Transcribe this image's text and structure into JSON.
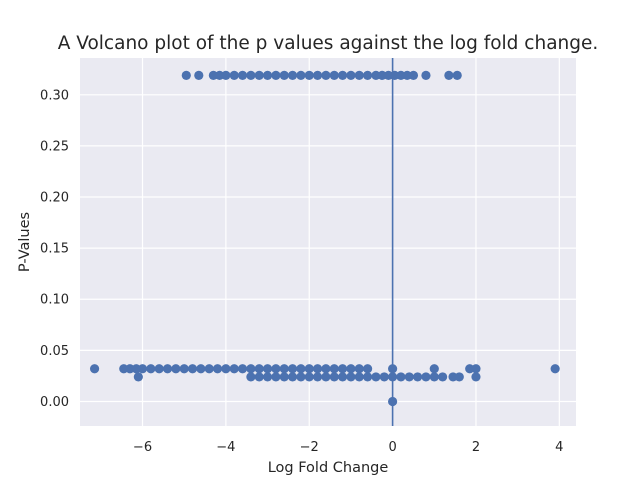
{
  "chart_data": {
    "type": "scatter",
    "title": "A Volcano plot of the p values against the log fold change.",
    "xlabel": "Log Fold Change",
    "ylabel": "P-Values",
    "xlim": [
      -7.5,
      4.4
    ],
    "ylim": [
      -0.024,
      0.336
    ],
    "x_ticks": [
      -6,
      -4,
      -2,
      0,
      2,
      4
    ],
    "x_tick_labels": [
      "−6",
      "−4",
      "−2",
      "0",
      "2",
      "4"
    ],
    "y_ticks": [
      0.0,
      0.05,
      0.1,
      0.15,
      0.2,
      0.25,
      0.3
    ],
    "y_tick_labels": [
      "0.00",
      "0.05",
      "0.10",
      "0.15",
      "0.20",
      "0.25",
      "0.30"
    ],
    "grid": true,
    "reference_line": {
      "orientation": "vertical",
      "x": 0
    },
    "points": [
      {
        "x": -4.95,
        "y": 0.319
      },
      {
        "x": -4.65,
        "y": 0.319
      },
      {
        "x": -4.3,
        "y": 0.319
      },
      {
        "x": -4.15,
        "y": 0.319
      },
      {
        "x": -4.0,
        "y": 0.319
      },
      {
        "x": -3.8,
        "y": 0.319
      },
      {
        "x": -3.6,
        "y": 0.319
      },
      {
        "x": -3.4,
        "y": 0.319
      },
      {
        "x": -3.2,
        "y": 0.319
      },
      {
        "x": -3.0,
        "y": 0.319
      },
      {
        "x": -2.8,
        "y": 0.319
      },
      {
        "x": -2.6,
        "y": 0.319
      },
      {
        "x": -2.4,
        "y": 0.319
      },
      {
        "x": -2.2,
        "y": 0.319
      },
      {
        "x": -2.0,
        "y": 0.319
      },
      {
        "x": -1.8,
        "y": 0.319
      },
      {
        "x": -1.6,
        "y": 0.319
      },
      {
        "x": -1.4,
        "y": 0.319
      },
      {
        "x": -1.2,
        "y": 0.319
      },
      {
        "x": -1.0,
        "y": 0.319
      },
      {
        "x": -0.8,
        "y": 0.319
      },
      {
        "x": -0.6,
        "y": 0.319
      },
      {
        "x": -0.4,
        "y": 0.319
      },
      {
        "x": -0.25,
        "y": 0.319
      },
      {
        "x": -0.1,
        "y": 0.319
      },
      {
        "x": 0.05,
        "y": 0.319
      },
      {
        "x": 0.2,
        "y": 0.319
      },
      {
        "x": 0.35,
        "y": 0.319
      },
      {
        "x": 0.5,
        "y": 0.319
      },
      {
        "x": 0.8,
        "y": 0.319
      },
      {
        "x": 1.35,
        "y": 0.319
      },
      {
        "x": 1.55,
        "y": 0.319
      },
      {
        "x": -7.15,
        "y": 0.032
      },
      {
        "x": -6.45,
        "y": 0.032
      },
      {
        "x": -6.3,
        "y": 0.032
      },
      {
        "x": -6.15,
        "y": 0.032
      },
      {
        "x": -6.0,
        "y": 0.032
      },
      {
        "x": -5.8,
        "y": 0.032
      },
      {
        "x": -5.6,
        "y": 0.032
      },
      {
        "x": -5.4,
        "y": 0.032
      },
      {
        "x": -5.2,
        "y": 0.032
      },
      {
        "x": -5.0,
        "y": 0.032
      },
      {
        "x": -4.8,
        "y": 0.032
      },
      {
        "x": -4.6,
        "y": 0.032
      },
      {
        "x": -4.4,
        "y": 0.032
      },
      {
        "x": -4.2,
        "y": 0.032
      },
      {
        "x": -4.0,
        "y": 0.032
      },
      {
        "x": -3.8,
        "y": 0.032
      },
      {
        "x": -3.6,
        "y": 0.032
      },
      {
        "x": -3.4,
        "y": 0.032
      },
      {
        "x": -3.2,
        "y": 0.032
      },
      {
        "x": -3.0,
        "y": 0.032
      },
      {
        "x": -2.8,
        "y": 0.032
      },
      {
        "x": -2.6,
        "y": 0.032
      },
      {
        "x": -2.4,
        "y": 0.032
      },
      {
        "x": -2.2,
        "y": 0.032
      },
      {
        "x": -2.0,
        "y": 0.032
      },
      {
        "x": -1.8,
        "y": 0.032
      },
      {
        "x": -1.6,
        "y": 0.032
      },
      {
        "x": -1.4,
        "y": 0.032
      },
      {
        "x": -1.2,
        "y": 0.032
      },
      {
        "x": -1.0,
        "y": 0.032
      },
      {
        "x": -0.8,
        "y": 0.032
      },
      {
        "x": -0.6,
        "y": 0.032
      },
      {
        "x": 0.0,
        "y": 0.032
      },
      {
        "x": 1.0,
        "y": 0.032
      },
      {
        "x": 1.85,
        "y": 0.032
      },
      {
        "x": 2.0,
        "y": 0.032
      },
      {
        "x": 3.9,
        "y": 0.032
      },
      {
        "x": -6.1,
        "y": 0.024
      },
      {
        "x": -3.4,
        "y": 0.024
      },
      {
        "x": -3.2,
        "y": 0.024
      },
      {
        "x": -3.0,
        "y": 0.024
      },
      {
        "x": -2.8,
        "y": 0.024
      },
      {
        "x": -2.6,
        "y": 0.024
      },
      {
        "x": -2.4,
        "y": 0.024
      },
      {
        "x": -2.2,
        "y": 0.024
      },
      {
        "x": -2.0,
        "y": 0.024
      },
      {
        "x": -1.8,
        "y": 0.024
      },
      {
        "x": -1.6,
        "y": 0.024
      },
      {
        "x": -1.4,
        "y": 0.024
      },
      {
        "x": -1.2,
        "y": 0.024
      },
      {
        "x": -1.0,
        "y": 0.024
      },
      {
        "x": -0.8,
        "y": 0.024
      },
      {
        "x": -0.6,
        "y": 0.024
      },
      {
        "x": -0.4,
        "y": 0.024
      },
      {
        "x": -0.2,
        "y": 0.024
      },
      {
        "x": 0.0,
        "y": 0.024
      },
      {
        "x": 0.2,
        "y": 0.024
      },
      {
        "x": 0.4,
        "y": 0.024
      },
      {
        "x": 0.6,
        "y": 0.024
      },
      {
        "x": 0.8,
        "y": 0.024
      },
      {
        "x": 1.0,
        "y": 0.024
      },
      {
        "x": 1.2,
        "y": 0.024
      },
      {
        "x": 1.45,
        "y": 0.024
      },
      {
        "x": 1.6,
        "y": 0.024
      },
      {
        "x": 2.0,
        "y": 0.024
      },
      {
        "x": 0.0,
        "y": 0.0
      }
    ]
  },
  "colors": {
    "marker": "#4c72b0",
    "plot_background": "#eaeaf2",
    "grid": "#ffffff",
    "text": "#262626",
    "page_background": "#ffffff"
  }
}
